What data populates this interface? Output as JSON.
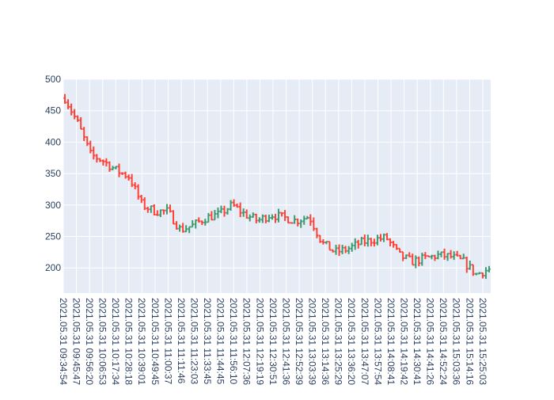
{
  "chart_data": {
    "type": "ohlc",
    "title": "",
    "xlabel": "",
    "ylabel": "",
    "ylim": [
      160,
      500
    ],
    "y_ticks": [
      200,
      250,
      300,
      350,
      400,
      450,
      500
    ],
    "grid": true,
    "colors": {
      "up": "#3d9970",
      "down": "#ff4136",
      "plot_bg": "#e5ecf6",
      "grid": "#ffffff",
      "tick_text": "#2a3f5f"
    },
    "x_tick_labels": [
      "2021.05.31 09:34:54",
      "2021.05.31 09:45:47",
      "2021.05.31 09:56:20",
      "2021.05.31 10:06:53",
      "2021.05.31 10:17:34",
      "2021.05.31 10:28:18",
      "2021.05.31 10:39:01",
      "2021.05.31 10:49:45",
      "2021.05.31 11:00:37",
      "2021.05.31 11:11:46",
      "2021.05.31 11:23:03",
      "2021.05.31 11:33:45",
      "2021.05.31 11:44:45",
      "2021.05.31 11:56:10",
      "2021.05.31 12:07:36",
      "2021.05.31 12:19:19",
      "2021.05.31 12:30:51",
      "2021.05.31 12:41:36",
      "2021.05.31 12:52:39",
      "2021.05.31 13:03:39",
      "2021.05.31 13:14:36",
      "2021.05.31 13:25:29",
      "2021.05.31 13:36:20",
      "2021.05.31 13:47:07",
      "2021.05.31 13:57:54",
      "2021.05.31 14:08:41",
      "2021.05.31 14:19:42",
      "2021.05.31 14:30:41",
      "2021.05.31 14:41:26",
      "2021.05.31 14:52:24",
      "2021.05.31 15:03:36",
      "2021.05.31 15:14:16",
      "2021.05.31 15:25:03"
    ],
    "anchors": [
      [
        0,
        470
      ],
      [
        1,
        430
      ],
      [
        2,
        380
      ],
      [
        3,
        370
      ],
      [
        4,
        355
      ],
      [
        5,
        345
      ],
      [
        6,
        300
      ],
      [
        7,
        290
      ],
      [
        8,
        290
      ],
      [
        9,
        260
      ],
      [
        10,
        268
      ],
      [
        11,
        280
      ],
      [
        12,
        285
      ],
      [
        13,
        300
      ],
      [
        14,
        285
      ],
      [
        15,
        275
      ],
      [
        16,
        285
      ],
      [
        17,
        280
      ],
      [
        18,
        275
      ],
      [
        19,
        282
      ],
      [
        20,
        240
      ],
      [
        21,
        225
      ],
      [
        22,
        230
      ],
      [
        23,
        240
      ],
      [
        24,
        245
      ],
      [
        25,
        248
      ],
      [
        26,
        220
      ],
      [
        27,
        210
      ],
      [
        28,
        215
      ],
      [
        29,
        220
      ],
      [
        30,
        218
      ],
      [
        31,
        210
      ],
      [
        32,
        190
      ],
      [
        33,
        198
      ]
    ],
    "candle_count": 134
  }
}
